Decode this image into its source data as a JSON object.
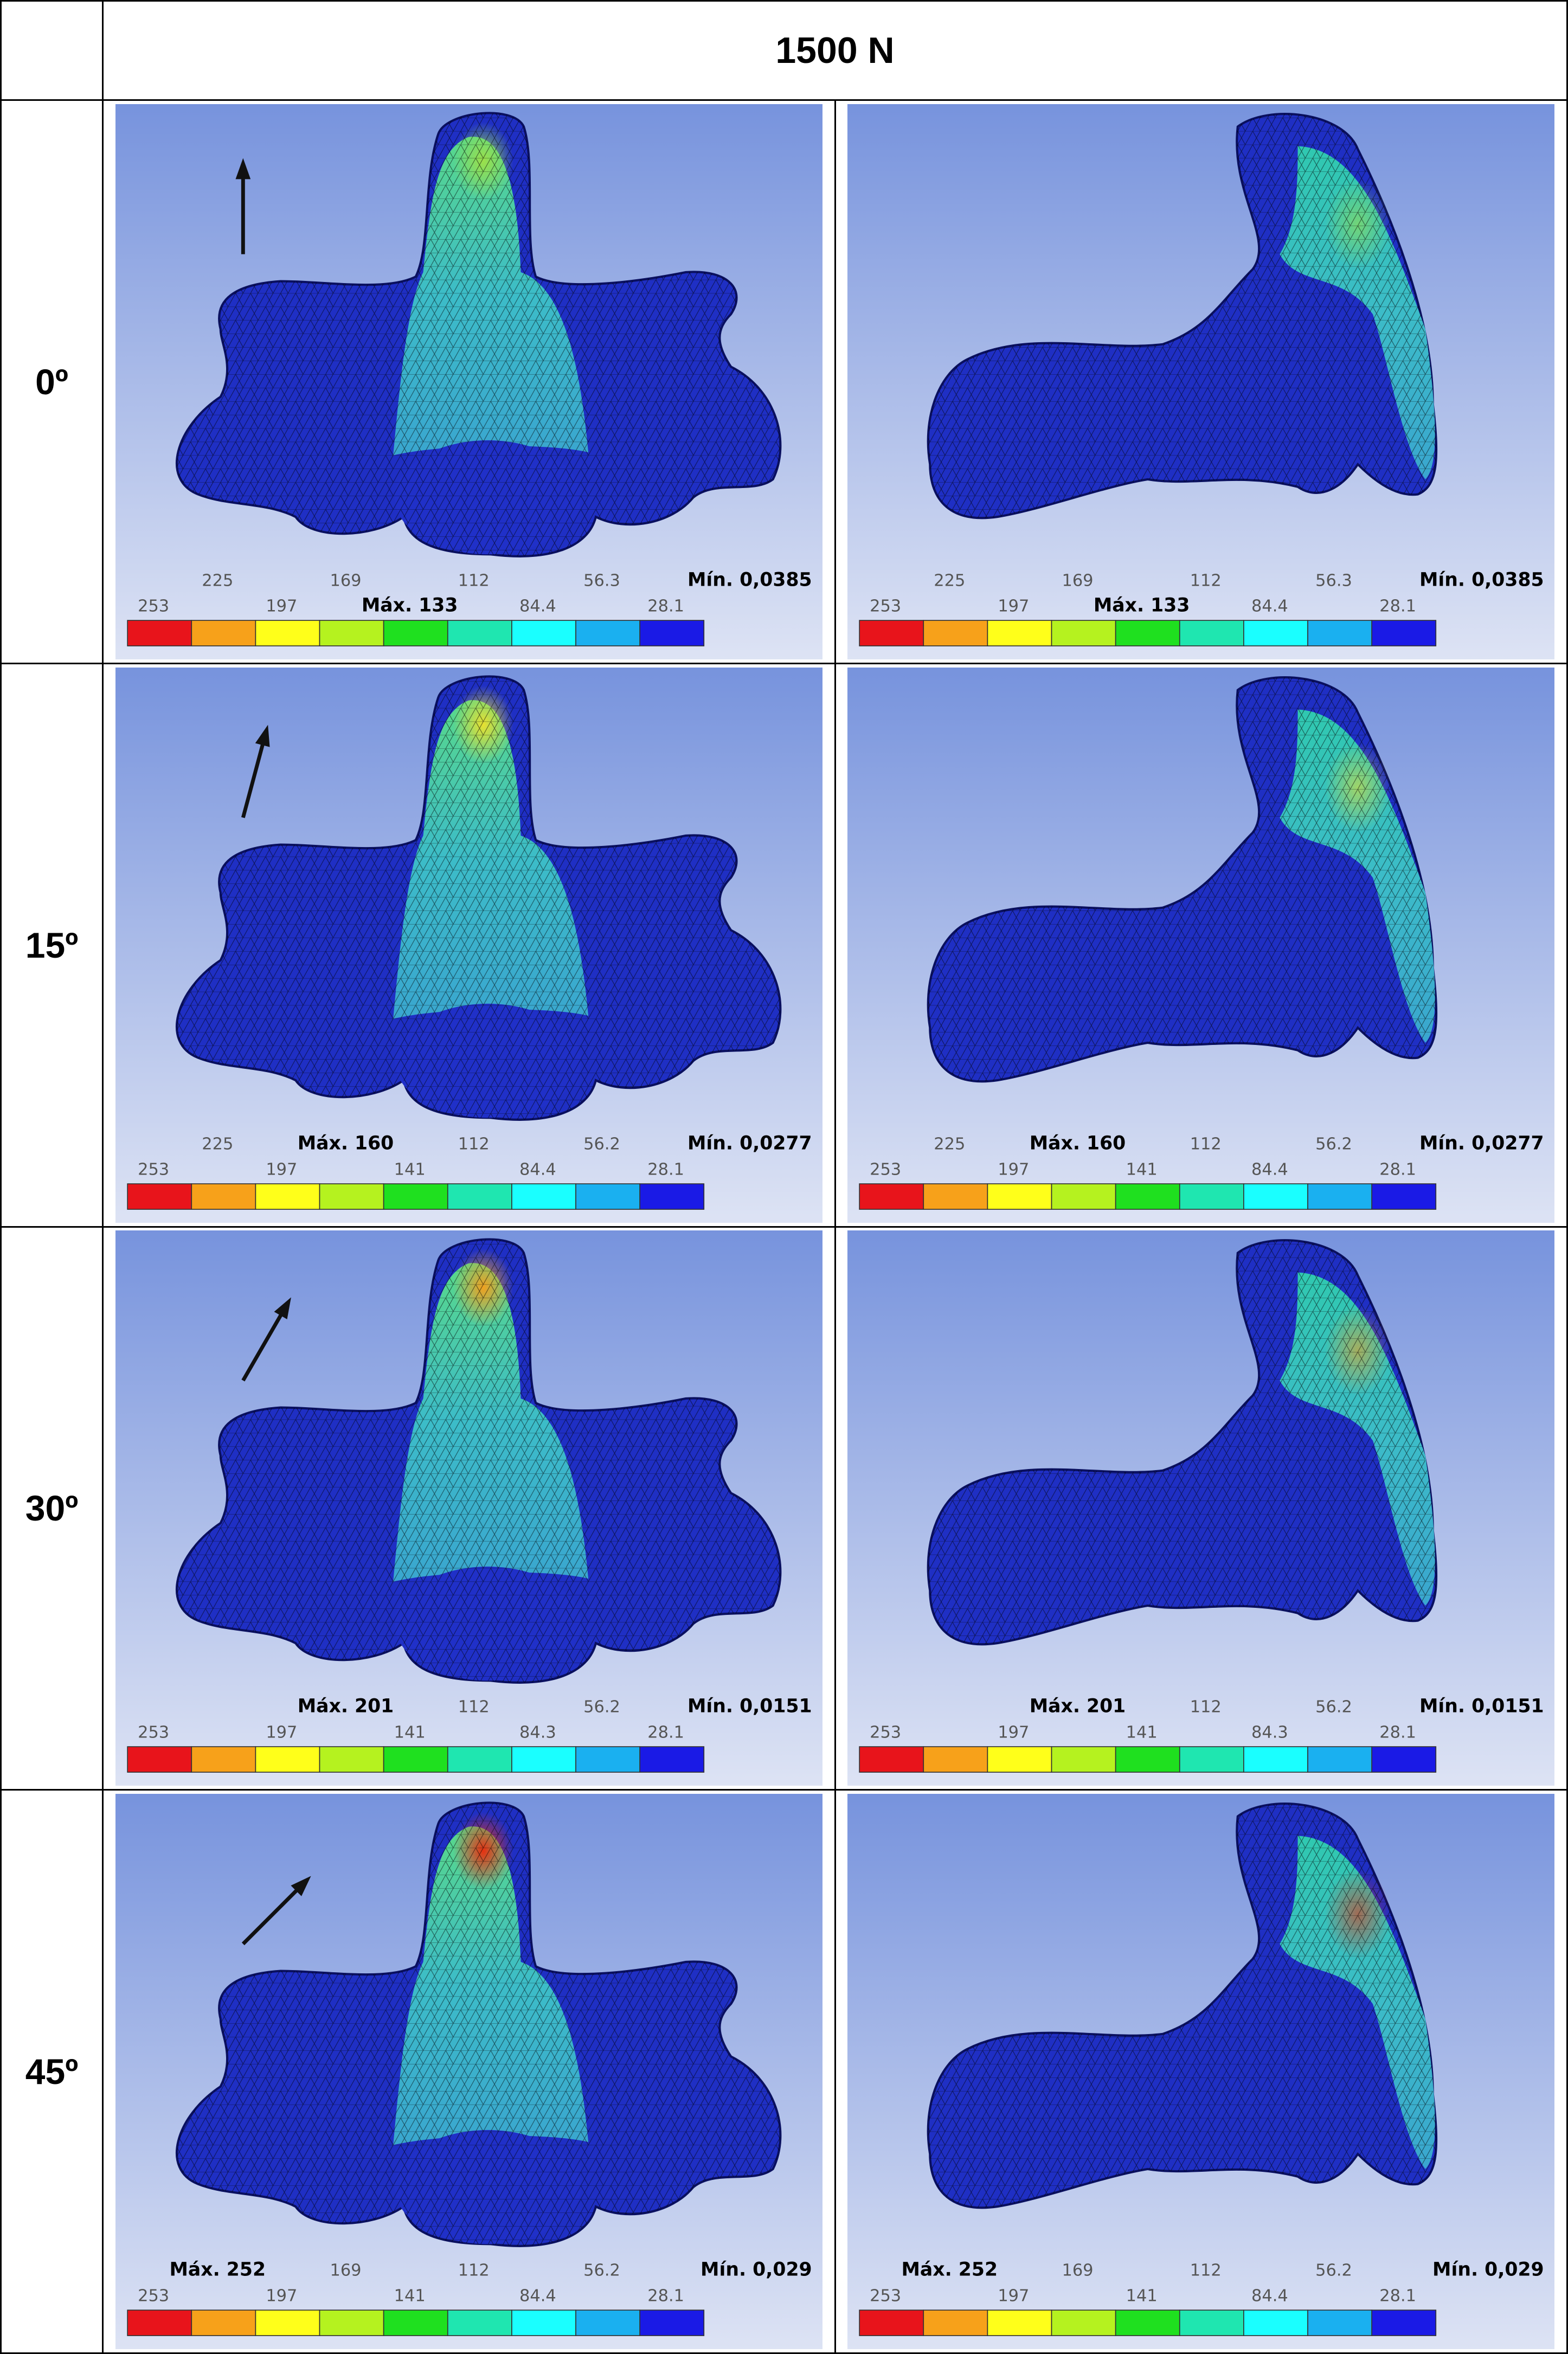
{
  "header": {
    "load": "1500 N"
  },
  "rows": [
    {
      "angle": "0º",
      "min": "Mín. 0,0385",
      "upper": [
        "225",
        "169",
        "112",
        "56.3"
      ],
      "lower": [
        "253",
        "197",
        {
          "text": "Máx. 133",
          "bold": true
        },
        "84.4",
        "28.1"
      ]
    },
    {
      "angle": "15º",
      "min": "Mín. 0,0277",
      "upper": [
        "225",
        {
          "text": "Máx. 160",
          "bold": true
        },
        "112",
        "56.2"
      ],
      "lower": [
        "253",
        "197",
        "141",
        "84.4",
        "28.1"
      ]
    },
    {
      "angle": "30º",
      "min": "Mín. 0,0151",
      "upper": [
        {
          "text": "Máx. 201",
          "bold": true
        },
        "112",
        "56.2"
      ],
      "lower": [
        "253",
        "197",
        "141",
        "84.3",
        "28.1"
      ]
    },
    {
      "angle": "45º",
      "min": "Mín. 0,029",
      "upper": [
        {
          "text": "Máx. 252",
          "bold": true
        },
        "169",
        "112",
        "56.2"
      ],
      "lower": [
        "253",
        "197",
        "141",
        "84.4",
        "28.1"
      ]
    }
  ]
}
